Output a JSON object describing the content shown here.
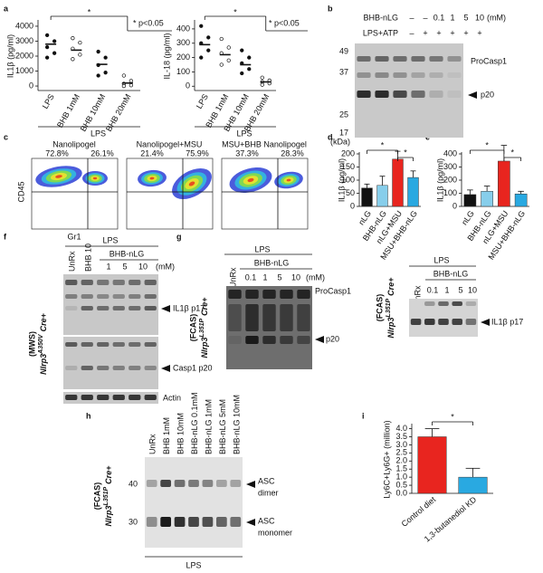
{
  "chart_data": [
    {
      "type": "dot",
      "ylabel": "IL1β (pg/ml)",
      "categories": [
        "LPS",
        "BHB 1mM",
        "BHB 10mM",
        "BHB 20mM"
      ],
      "group_label": "LPS",
      "values": [
        2800,
        2400,
        1450,
        200
      ],
      "points": [
        [
          3400,
          3000,
          2600,
          2200,
          1900
        ],
        [
          3200,
          2900,
          2500,
          2100,
          1800
        ],
        [
          2300,
          1900,
          1400,
          900,
          700
        ],
        [
          700,
          350,
          150,
          50,
          0
        ]
      ],
      "ylim": [
        -300,
        4300
      ],
      "yticks": [
        0,
        1000,
        2000,
        3000,
        4000
      ],
      "annotation": "*",
      "note": "* p<0.05"
    },
    {
      "type": "dot",
      "ylabel": "IL-18 (pg/ml)",
      "categories": [
        "LPS",
        "BHB 1mM",
        "BHB 10mM",
        "BHB 20mM"
      ],
      "group_label": "LPS",
      "values": [
        290,
        220,
        150,
        30
      ],
      "points": [
        [
          420,
          340,
          300,
          250,
          200
        ],
        [
          330,
          270,
          230,
          180,
          150
        ],
        [
          250,
          200,
          160,
          120,
          90
        ],
        [
          60,
          40,
          30,
          20,
          10
        ]
      ],
      "ylim": [
        -30,
        450
      ],
      "yticks": [
        0,
        100,
        200,
        300,
        400
      ],
      "annotation": "*",
      "note": "* p<0.05"
    },
    {
      "type": "bar",
      "ylabel": "IL1β (pg/ml)",
      "categories": [
        "nLG",
        "BHB-nLG",
        "nLG+MSU",
        "MSU+BHB-nLG"
      ],
      "values": [
        70,
        80,
        180,
        110
      ],
      "errors": [
        15,
        35,
        30,
        25
      ],
      "colors": [
        "#111111",
        "#87ceeb",
        "#e8251f",
        "#29a9e1"
      ],
      "ylim": [
        0,
        200
      ],
      "yticks": [
        0,
        50,
        100,
        150,
        200
      ],
      "annotations": [
        "*",
        "*"
      ]
    },
    {
      "type": "bar",
      "ylabel": "IL1β (pg/ml)",
      "categories": [
        "nLG",
        "BHB-nLG",
        "nLG+MSU",
        "MSU+BHB-nLG"
      ],
      "values": [
        90,
        115,
        345,
        95
      ],
      "errors": [
        35,
        40,
        120,
        20
      ],
      "colors": [
        "#111111",
        "#87ceeb",
        "#e8251f",
        "#29a9e1"
      ],
      "ylim": [
        0,
        400
      ],
      "yticks": [
        0,
        100,
        200,
        300,
        400
      ],
      "annotations": [
        "*",
        "*"
      ]
    },
    {
      "type": "bar",
      "ylabel": "Ly6C+Ly6G+ (million)",
      "categories": [
        "Control diet",
        "1,3-butanediol KD"
      ],
      "values": [
        3.5,
        1.0
      ],
      "errors": [
        0.5,
        0.55
      ],
      "colors": [
        "#e8251f",
        "#29a9e1"
      ],
      "ylim": [
        0,
        4.2
      ],
      "yticks": [
        {
          "value": 0,
          "label": "0.0"
        },
        0.5,
        {
          "value": 1,
          "label": "1.0"
        },
        1.5,
        {
          "value": 2,
          "label": "2.0"
        },
        2.5,
        {
          "value": 3,
          "label": "3.0"
        },
        3.5,
        {
          "value": 4,
          "label": "4.0"
        }
      ],
      "annotations": [
        "*"
      ]
    }
  ],
  "panels": {
    "letters": [
      "a",
      "b",
      "c",
      "d",
      "e",
      "f",
      "g",
      "h",
      "i"
    ],
    "b": {
      "header1": "BHB-nLG",
      "lanes1": [
        "–",
        "–",
        "0.1",
        "1",
        "5",
        "10"
      ],
      "unit": "(mM)",
      "header2": "LPS+ATP",
      "lanes2": [
        "–",
        "+",
        "+",
        "+",
        "+",
        "+"
      ],
      "markers": [
        "49",
        "37",
        "25",
        "17"
      ],
      "kda": "(kDa)",
      "bands": [
        "ProCasp1",
        "p20"
      ]
    },
    "c": {
      "titles": [
        "Nanolipogel",
        "Nanolipogel+MSU",
        "MSU+BHB Nanolipogel"
      ],
      "percent_left": [
        "72.8%",
        "21.4%",
        "37.3%"
      ],
      "percent_right": [
        "26.1%",
        "75.9%",
        "28.3%"
      ],
      "ylabel": "CD45",
      "xlabel": "Gr1"
    },
    "f": {
      "lps": "LPS",
      "bhb": "BHB-nLG",
      "lanes": [
        "UnRx",
        "BHB 10",
        "1",
        "5",
        "10"
      ],
      "unit": "(mM)",
      "strain": "(MWS)",
      "gene": "Nlrp3",
      "allele": "A350V",
      "cre": "Cre+",
      "bands": [
        "IL1β p17",
        "Casp1 p20",
        "Actin"
      ]
    },
    "g": {
      "strain": "(FCAS)",
      "gene": "Nlrp3",
      "allele": "L351P",
      "cre": "Cre+",
      "left": {
        "lps": "LPS",
        "bhb": "BHB-nLG",
        "lanes": [
          "UnRx",
          "0.1",
          "1",
          "5",
          "10"
        ],
        "unit": "(mM)",
        "bands": [
          "ProCasp1",
          "p20"
        ]
      },
      "right": {
        "lps": "LPS",
        "bhb": "BHB-nLG",
        "lanes": [
          "UnRx",
          "0.1",
          "1",
          "5",
          "10"
        ],
        "bands": [
          "IL1β p17"
        ]
      }
    },
    "h": {
      "lanes": [
        "UnRx",
        "BHB 1mM",
        "BHB 10mM",
        "BHB-nLG 0.1mM",
        "BHB-nLG 1mM",
        "BHB-nLG 5mM",
        "BHB-nLG 10mM"
      ],
      "markers": [
        "40",
        "30"
      ],
      "bands": [
        [
          "ASC",
          "dimer"
        ],
        [
          "ASC",
          "monomer"
        ]
      ],
      "lps": "LPS",
      "strain": "(FCAS)",
      "gene": "Nlrp3",
      "allele": "L351P",
      "cre": "Cre+"
    }
  }
}
